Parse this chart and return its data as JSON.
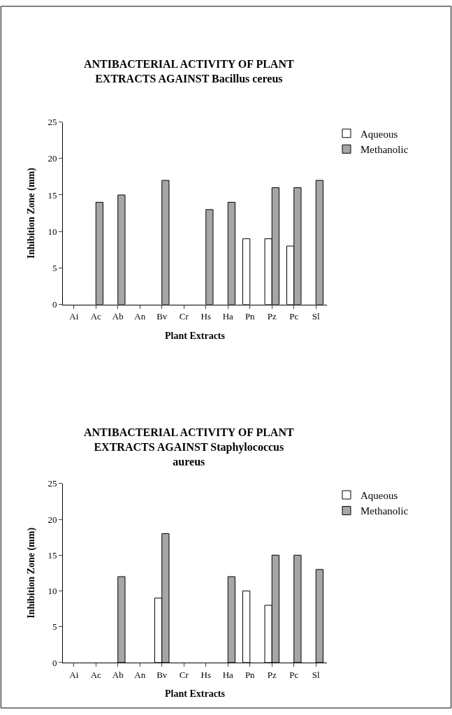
{
  "chart_data": [
    {
      "type": "bar",
      "title": "ANTIBACTERIAL ACTIVITY OF PLANT EXTRACTS AGAINST Bacillus cereus",
      "xlabel": "Plant Extracts",
      "ylabel": "Inhibition Zone (mm)",
      "categories": [
        "Ai",
        "Ac",
        "Ab",
        "An",
        "Bv",
        "Cr",
        "Hs",
        "Ha",
        "Pn",
        "Pz",
        "Pc",
        "Sl"
      ],
      "series": [
        {
          "name": "Aqueous",
          "color": "#ffffff",
          "values": [
            null,
            null,
            null,
            null,
            null,
            null,
            null,
            null,
            9,
            9,
            8,
            null
          ]
        },
        {
          "name": "Methanolic",
          "color": "#a6a6a6",
          "values": [
            null,
            14,
            15,
            null,
            17,
            null,
            13,
            14,
            null,
            16,
            16,
            17
          ]
        }
      ],
      "ylim": [
        0,
        25
      ],
      "yticks": [
        0,
        5,
        10,
        15,
        20,
        25
      ],
      "legend": "top right"
    },
    {
      "type": "bar",
      "title": "ANTIBACTERIAL ACTIVITY OF PLANT EXTRACTS AGAINST Staphylococcus aureus",
      "xlabel": "Plant Extracts",
      "ylabel": "Inhibition Zone (mm)",
      "categories": [
        "Ai",
        "Ac",
        "Ab",
        "An",
        "Bv",
        "Cr",
        "Hs",
        "Ha",
        "Pn",
        "Pz",
        "Pc",
        "Sl"
      ],
      "series": [
        {
          "name": "Aqueous",
          "color": "#ffffff",
          "values": [
            null,
            null,
            null,
            null,
            9,
            null,
            null,
            null,
            10,
            8,
            null,
            null
          ]
        },
        {
          "name": "Methanolic",
          "color": "#a6a6a6",
          "values": [
            null,
            null,
            12,
            null,
            18,
            null,
            null,
            12,
            null,
            15,
            15,
            13
          ]
        }
      ],
      "ylim": [
        0,
        25
      ],
      "yticks": [
        0,
        5,
        10,
        15,
        20,
        25
      ],
      "legend": "top right"
    }
  ]
}
